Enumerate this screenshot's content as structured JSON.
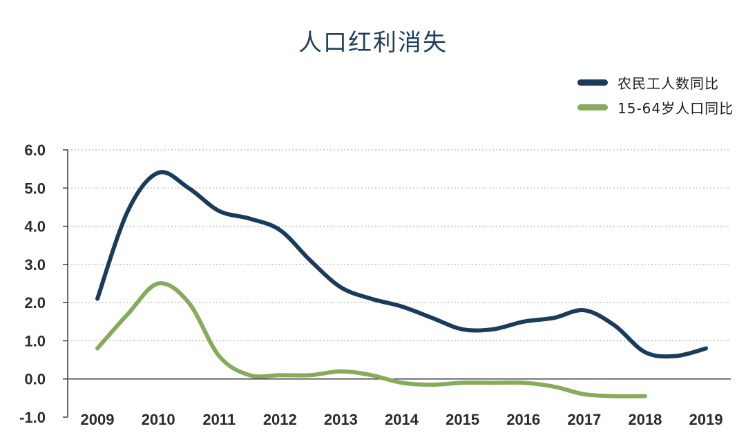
{
  "chart_data": {
    "type": "line",
    "title": "人口红利消失",
    "categories": [
      "2009",
      "2010",
      "2011",
      "2012",
      "2013",
      "2014",
      "2015",
      "2016",
      "2017",
      "2018",
      "2019"
    ],
    "y_ticks": [
      "6.0",
      "5.0",
      "4.0",
      "3.0",
      "2.0",
      "1.0",
      "0.0",
      "-1.0"
    ],
    "ylim": [
      -1.0,
      6.0
    ],
    "xlabel": "",
    "ylabel": "",
    "grid": true,
    "legend_position": "top-right",
    "series": [
      {
        "name": "农民工人数同比",
        "color": "#1b3b5a",
        "x": [
          2009,
          2009.5,
          2010,
          2010.5,
          2011,
          2011.5,
          2012,
          2012.5,
          2013,
          2013.5,
          2014,
          2014.5,
          2015,
          2015.5,
          2016,
          2016.5,
          2017,
          2017.5,
          2018,
          2018.5,
          2019
        ],
        "values": [
          2.1,
          4.4,
          5.4,
          5.0,
          4.4,
          4.2,
          3.9,
          3.1,
          2.4,
          2.1,
          1.9,
          1.6,
          1.3,
          1.3,
          1.5,
          1.6,
          1.8,
          1.4,
          0.7,
          0.6,
          0.8
        ]
      },
      {
        "name": "15-64岁人口同比",
        "color": "#87ab5c",
        "x": [
          2009,
          2009.5,
          2010,
          2010.5,
          2011,
          2011.5,
          2012,
          2012.5,
          2013,
          2013.5,
          2014,
          2014.5,
          2015,
          2015.5,
          2016,
          2016.5,
          2017,
          2017.5,
          2018
        ],
        "values": [
          0.8,
          1.7,
          2.5,
          2.0,
          0.6,
          0.1,
          0.1,
          0.1,
          0.2,
          0.1,
          -0.1,
          -0.15,
          -0.1,
          -0.1,
          -0.1,
          -0.2,
          -0.4,
          -0.45,
          -0.45
        ]
      }
    ]
  }
}
